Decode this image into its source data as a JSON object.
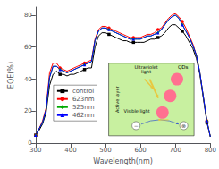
{
  "chart_data": {
    "type": "line",
    "xlabel": "Wavelength(nm)",
    "ylabel": "EQE(%)",
    "xlim": [
      300,
      800
    ],
    "ylim": [
      0,
      85
    ],
    "xticks": [
      300,
      400,
      500,
      600,
      700,
      800
    ],
    "yticks": [
      0,
      20,
      40,
      60,
      80
    ],
    "grid": false,
    "legend": "lower left",
    "x": [
      300,
      310,
      320,
      330,
      340,
      350,
      360,
      370,
      380,
      390,
      400,
      410,
      420,
      430,
      440,
      450,
      460,
      470,
      480,
      490,
      500,
      510,
      520,
      530,
      540,
      550,
      560,
      570,
      580,
      590,
      600,
      610,
      620,
      630,
      640,
      650,
      660,
      670,
      680,
      690,
      700,
      710,
      720,
      730,
      740,
      750,
      760,
      770,
      780,
      790,
      800
    ],
    "series": [
      {
        "name": "control",
        "color": "black",
        "marker": "square",
        "values": [
          5,
          8,
          12,
          19,
          36,
          43,
          45,
          43,
          43,
          42,
          43,
          43,
          44,
          45,
          46,
          47,
          47,
          60,
          67,
          69,
          69,
          68,
          67,
          66,
          65,
          64,
          64,
          63,
          63,
          63,
          63,
          63,
          64,
          65,
          65,
          66,
          67,
          69,
          72,
          74,
          74,
          72,
          70,
          67,
          63,
          59,
          53,
          43,
          28,
          13,
          4
        ]
      },
      {
        "name": "623nm",
        "color": "red",
        "marker": "circle",
        "values": [
          5,
          9,
          14,
          22,
          44,
          50,
          50,
          47,
          46,
          45,
          46,
          47,
          48,
          49,
          50,
          51,
          52,
          65,
          71,
          73,
          73,
          72,
          71,
          70,
          69,
          68,
          67,
          66,
          66,
          66,
          66,
          67,
          68,
          68,
          69,
          71,
          72,
          75,
          78,
          80,
          81,
          79,
          76,
          72,
          67,
          62,
          55,
          44,
          29,
          14,
          4
        ]
      },
      {
        "name": "525nm",
        "color": "#00aa00",
        "marker": "diamond",
        "values": [
          5,
          9,
          13,
          21,
          41,
          48,
          48,
          46,
          45,
          44,
          45,
          46,
          47,
          48,
          49,
          50,
          51,
          64,
          70,
          72,
          72,
          71,
          70,
          69,
          68,
          67,
          66,
          65,
          65,
          65,
          65,
          66,
          67,
          67,
          68,
          69,
          71,
          74,
          77,
          79,
          80,
          78,
          74,
          70,
          66,
          61,
          55,
          44,
          29,
          14,
          4
        ]
      },
      {
        "name": "462nm",
        "color": "blue",
        "marker": "triangle",
        "values": [
          5,
          9,
          13,
          21,
          41,
          48,
          48,
          46,
          45,
          44,
          45,
          46,
          47,
          48,
          49,
          50,
          51,
          64,
          70,
          72,
          72,
          71,
          70,
          69,
          68,
          67,
          66,
          65,
          65,
          65,
          65,
          66,
          67,
          67,
          68,
          69,
          71,
          74,
          77,
          79,
          80,
          78,
          74,
          70,
          66,
          61,
          55,
          44,
          29,
          14,
          4
        ]
      }
    ],
    "annotations": [
      "Active layer",
      "Ultraviolet\nlight",
      "QDs",
      "Visible light",
      "−",
      "⊗"
    ]
  }
}
